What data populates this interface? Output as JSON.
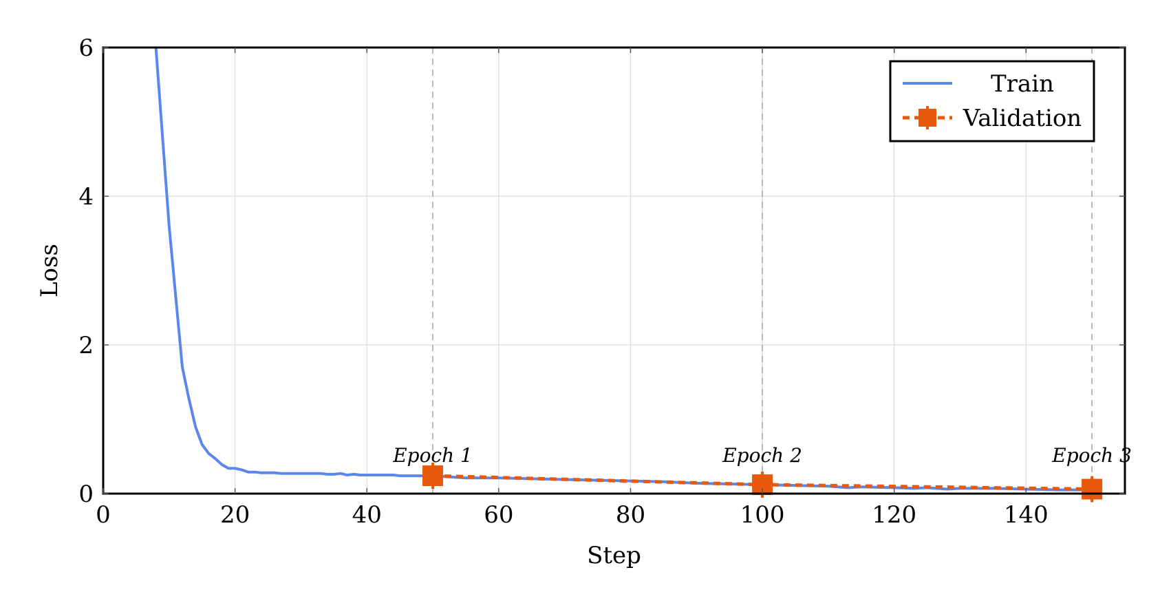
{
  "chart_data": {
    "type": "line",
    "xlabel": "Step",
    "ylabel": "Loss",
    "xlim": [
      0,
      155
    ],
    "ylim": [
      0,
      6
    ],
    "xticks": [
      0,
      20,
      40,
      60,
      80,
      100,
      120,
      140
    ],
    "yticks": [
      0,
      2,
      4,
      6
    ],
    "grid": true,
    "legend_position": "top-right",
    "series": [
      {
        "name": "Train",
        "color": "#5b87ec",
        "style": "solid",
        "x": [
          8,
          10,
          12,
          13,
          14,
          15,
          16,
          17,
          18,
          19,
          20,
          21,
          22,
          23,
          24,
          26,
          27,
          30,
          33,
          34,
          35,
          36,
          37,
          38,
          39,
          40,
          44,
          45,
          50,
          55,
          60,
          65,
          70,
          75,
          80,
          85,
          90,
          95,
          100,
          105,
          110,
          113,
          115,
          120,
          123,
          125,
          128,
          130,
          135,
          140,
          145,
          150
        ],
        "y": [
          6.0,
          3.6,
          1.7,
          1.28,
          0.9,
          0.66,
          0.54,
          0.47,
          0.39,
          0.34,
          0.34,
          0.32,
          0.29,
          0.29,
          0.28,
          0.28,
          0.27,
          0.27,
          0.27,
          0.26,
          0.26,
          0.27,
          0.25,
          0.26,
          0.25,
          0.25,
          0.25,
          0.24,
          0.24,
          0.21,
          0.21,
          0.2,
          0.19,
          0.18,
          0.17,
          0.16,
          0.14,
          0.13,
          0.12,
          0.11,
          0.1,
          0.08,
          0.09,
          0.08,
          0.07,
          0.08,
          0.06,
          0.07,
          0.07,
          0.06,
          0.05,
          0.05
        ]
      },
      {
        "name": "Validation",
        "color": "#e8590c",
        "style": "dashed",
        "marker": "square",
        "x": [
          50,
          100,
          150
        ],
        "y": [
          0.24,
          0.12,
          0.06
        ]
      }
    ],
    "vlines": [
      50,
      100,
      150
    ],
    "annotations": [
      {
        "x": 50,
        "text": "Epoch 1"
      },
      {
        "x": 100,
        "text": "Epoch 2"
      },
      {
        "x": 150,
        "text": "Epoch 3"
      }
    ]
  }
}
